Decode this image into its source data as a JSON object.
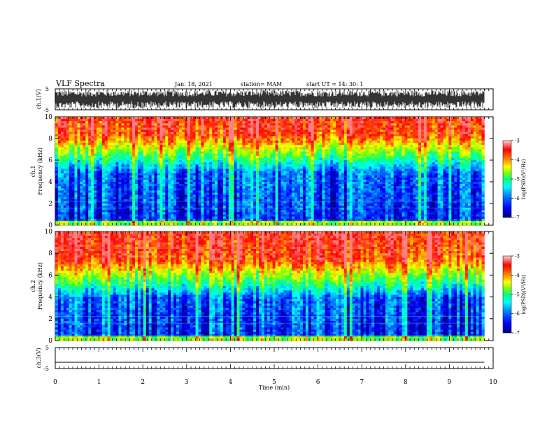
{
  "header": {
    "title": "VLF Spectra",
    "date": "Jan. 18, 2021",
    "station": "station= MAM",
    "start": "start  UT =   14: 30: 1"
  },
  "chart_data": [
    {
      "type": "line",
      "name": "ch1-waveform",
      "ylabel": "ch.1(V)",
      "ylim": [
        -5,
        5
      ],
      "yticklabels": [
        "5",
        "-5"
      ],
      "xlim": [
        0,
        10
      ],
      "trace": "dense oscillating waveform filling roughly -5 to 5 V across 0 to 9.8 min"
    },
    {
      "type": "heatmap",
      "name": "ch1-spectrogram",
      "ylabel": "ch.1\nFrequency (kHz)",
      "ylim": [
        0,
        10
      ],
      "yticks": [
        0,
        2,
        4,
        6,
        8,
        10
      ],
      "xlim": [
        0,
        9.8
      ],
      "colorbar": {
        "label": "log(PSD)(V²/Hz)",
        "range": [
          -7,
          -3
        ],
        "ticks": [
          "-3",
          "-4",
          "-5",
          "-6",
          "-7"
        ]
      },
      "profile": "low power (blue, about -6.5) below 5 kHz, rising through green at ~6 kHz to red (about -3.5) above 8 kHz",
      "palette": [
        "#000080",
        "#0000ff",
        "#0080ff",
        "#00ffff",
        "#00ff80",
        "#80ff00",
        "#ffff00",
        "#ff8000",
        "#ff0000",
        "#ff8080"
      ]
    },
    {
      "type": "heatmap",
      "name": "ch2-spectrogram",
      "ylabel": "ch.2\nFrequency (kHz)",
      "ylim": [
        0,
        10
      ],
      "yticks": [
        0,
        2,
        4,
        6,
        8,
        10
      ],
      "xlim": [
        0,
        9.8
      ],
      "colorbar": {
        "label": "log(PSD)(V²/Hz)",
        "range": [
          -7,
          -3
        ],
        "ticks": [
          "-3",
          "-4",
          "-5",
          "-6",
          "-7"
        ]
      },
      "profile": "low power below 4 kHz, transition 5 to 6 kHz, strong red above 7 kHz",
      "palette": [
        "#000080",
        "#0000ff",
        "#0080ff",
        "#00ffff",
        "#00ff80",
        "#80ff00",
        "#ffff00",
        "#ff8000",
        "#ff0000",
        "#ff8080"
      ]
    },
    {
      "type": "line",
      "name": "ch3-waveform",
      "ylabel": "ch.3(V)",
      "ylim": [
        -5,
        5
      ],
      "yticklabels": [
        "5",
        "-5"
      ],
      "xlim": [
        0,
        10
      ],
      "xlabel": "Time (min)",
      "xticks": [
        0,
        1,
        2,
        3,
        4,
        5,
        6,
        7,
        8,
        9,
        10
      ],
      "x": [
        0,
        9.8
      ],
      "y": [
        -2,
        -2
      ]
    }
  ]
}
